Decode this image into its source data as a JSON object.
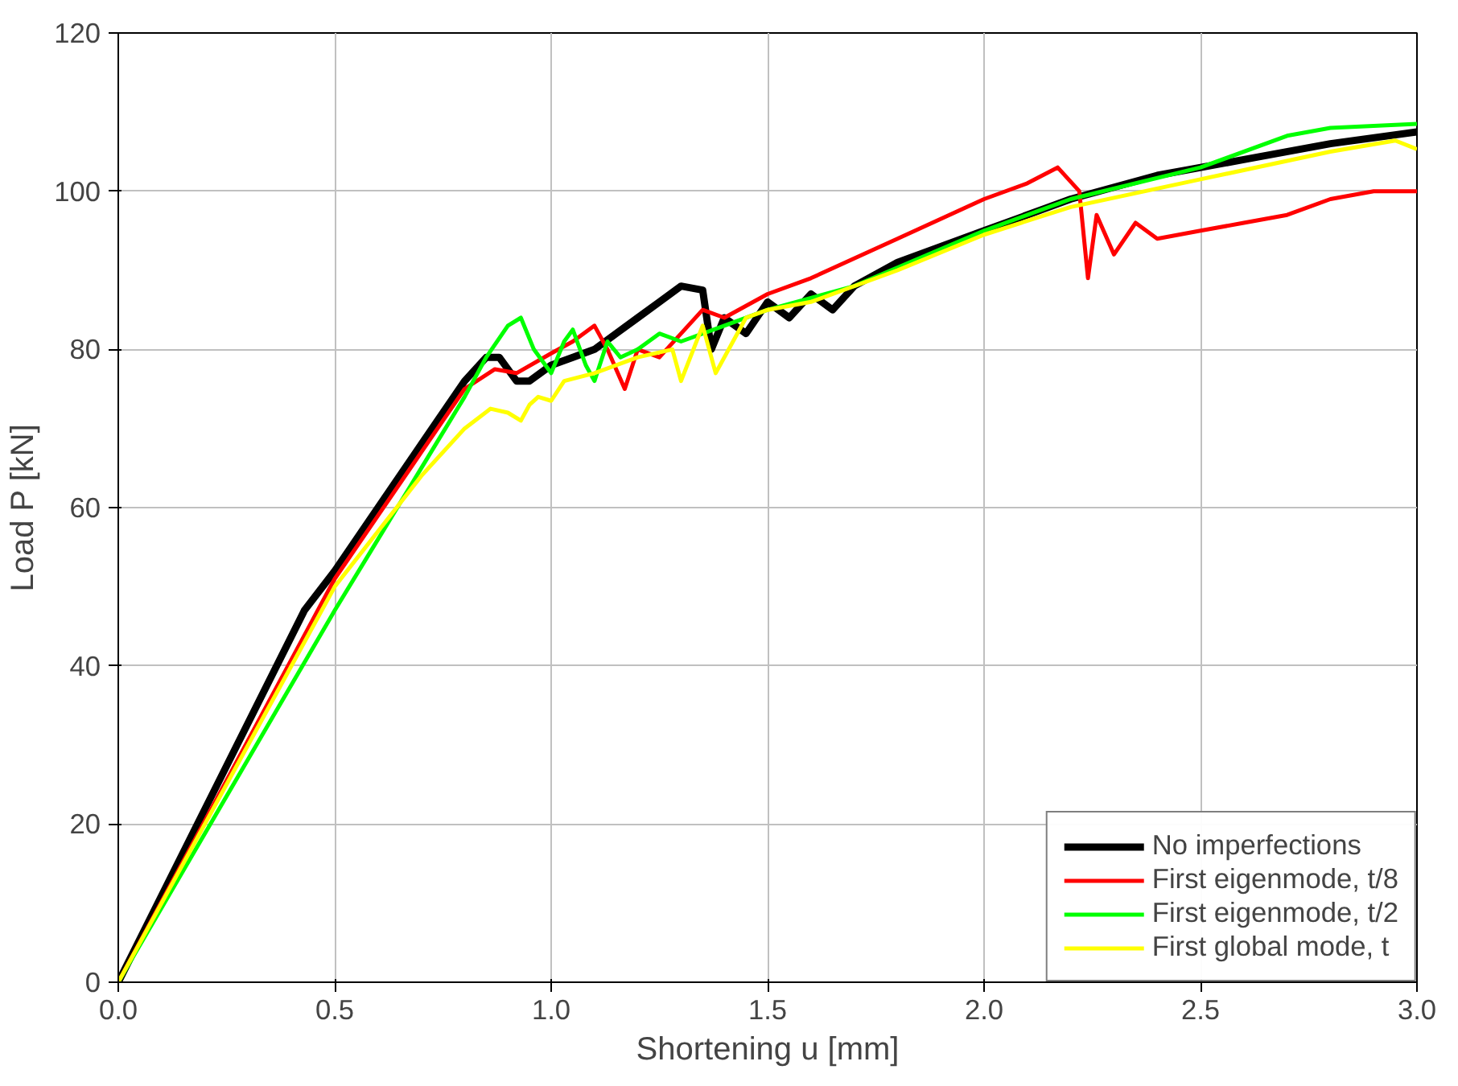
{
  "chart_data": {
    "type": "line",
    "xlabel": "Shortening u [mm]",
    "ylabel": "Load P [kN]",
    "xlim": [
      0,
      3
    ],
    "ylim": [
      0,
      120
    ],
    "xticks": [
      {
        "value": 0,
        "label": "0.0"
      },
      {
        "value": 0.5,
        "label": "0.5"
      },
      {
        "value": 1,
        "label": "1.0"
      },
      {
        "value": 1.5,
        "label": "1.5"
      },
      {
        "value": 2,
        "label": "2.0"
      },
      {
        "value": 2.5,
        "label": "2.5"
      },
      {
        "value": 3,
        "label": "3.0"
      }
    ],
    "yticks": [
      0,
      20,
      40,
      60,
      80,
      100,
      120
    ],
    "grid": true,
    "legend": "bottom right",
    "marker": "none",
    "line_style": "solid",
    "series": [
      {
        "name": "No imperfections",
        "color": "#000000",
        "x": [
          0,
          0.43,
          0.5,
          0.6,
          0.7,
          0.8,
          0.85,
          0.88,
          0.92,
          0.95,
          1.0,
          1.05,
          1.1,
          1.15,
          1.2,
          1.25,
          1.3,
          1.35,
          1.37,
          1.4,
          1.45,
          1.5,
          1.55,
          1.6,
          1.65,
          1.7,
          1.8,
          2.0,
          2.2,
          2.4,
          2.6,
          2.8,
          3.0
        ],
        "values": [
          0,
          47,
          52,
          60,
          68,
          76,
          79,
          79,
          76,
          76,
          78,
          79,
          80,
          82,
          84,
          86,
          88,
          87.5,
          80,
          84,
          82,
          86,
          84,
          87,
          85,
          88,
          91,
          95,
          99,
          102,
          104,
          106,
          107.5
        ]
      },
      {
        "name": "First eigenmode, t/8",
        "color": "#ff0000",
        "x": [
          0,
          0.5,
          0.6,
          0.7,
          0.8,
          0.87,
          0.92,
          1.0,
          1.05,
          1.1,
          1.13,
          1.17,
          1.2,
          1.25,
          1.3,
          1.35,
          1.4,
          1.5,
          1.6,
          1.8,
          2.0,
          2.1,
          2.17,
          2.22,
          2.24,
          2.26,
          2.3,
          2.35,
          2.4,
          2.5,
          2.6,
          2.7,
          2.8,
          2.9,
          3.0
        ],
        "values": [
          0,
          51,
          59,
          67,
          75,
          77.5,
          77,
          79.5,
          81,
          83,
          80,
          75,
          80,
          79,
          82,
          85,
          84,
          87,
          89,
          94,
          99,
          101,
          103,
          100,
          89,
          97,
          92,
          96,
          94,
          95,
          96,
          97,
          99,
          100,
          100
        ]
      },
      {
        "name": "First eigenmode, t/2",
        "color": "#00ff00",
        "x": [
          0,
          0.5,
          0.6,
          0.7,
          0.8,
          0.85,
          0.9,
          0.93,
          0.96,
          1.0,
          1.03,
          1.05,
          1.08,
          1.1,
          1.13,
          1.16,
          1.2,
          1.25,
          1.3,
          1.4,
          1.5,
          1.7,
          2.0,
          2.2,
          2.5,
          2.7,
          2.8,
          3.0
        ],
        "values": [
          0,
          47,
          56,
          65,
          74,
          79,
          83,
          84,
          80,
          77,
          81,
          82.5,
          78,
          76,
          81,
          79,
          80,
          82,
          81,
          83,
          85,
          88,
          95,
          99,
          103,
          107,
          108,
          108.5
        ]
      },
      {
        "name": "First global mode, t",
        "color": "#ffff00",
        "x": [
          0,
          0.5,
          0.6,
          0.7,
          0.8,
          0.86,
          0.9,
          0.93,
          0.95,
          0.97,
          1.0,
          1.03,
          1.1,
          1.2,
          1.28,
          1.3,
          1.35,
          1.38,
          1.45,
          1.5,
          1.6,
          1.8,
          2.0,
          2.2,
          2.5,
          2.8,
          2.95,
          3.0
        ],
        "values": [
          0,
          50,
          57,
          64,
          70,
          72.5,
          72,
          71,
          73,
          74,
          73.5,
          76,
          77,
          79,
          80,
          76,
          83,
          77,
          84,
          85,
          86,
          90,
          94.5,
          98,
          101.5,
          105,
          106.4,
          105.3
        ]
      }
    ]
  }
}
